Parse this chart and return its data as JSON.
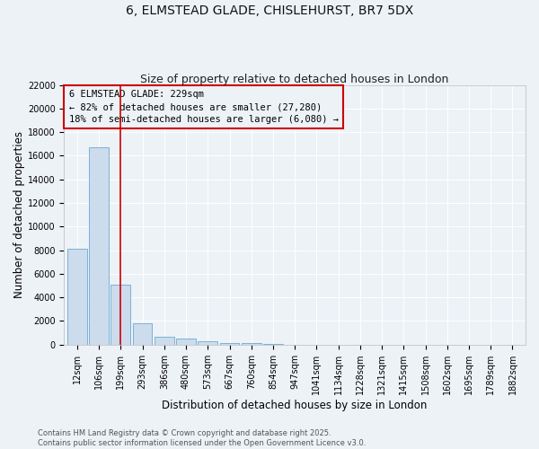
{
  "title_line1": "6, ELMSTEAD GLADE, CHISLEHURST, BR7 5DX",
  "title_line2": "Size of property relative to detached houses in London",
  "xlabel": "Distribution of detached houses by size in London",
  "ylabel": "Number of detached properties",
  "categories": [
    "12sqm",
    "106sqm",
    "199sqm",
    "293sqm",
    "386sqm",
    "480sqm",
    "573sqm",
    "667sqm",
    "760sqm",
    "854sqm",
    "947sqm",
    "1041sqm",
    "1134sqm",
    "1228sqm",
    "1321sqm",
    "1415sqm",
    "1508sqm",
    "1602sqm",
    "1695sqm",
    "1789sqm",
    "1882sqm"
  ],
  "values": [
    8100,
    16700,
    5100,
    1800,
    700,
    500,
    300,
    150,
    100,
    50,
    0,
    0,
    0,
    0,
    0,
    0,
    0,
    0,
    0,
    0,
    0
  ],
  "bar_color": "#ccdcec",
  "bar_edge_color": "#6aaad4",
  "red_line_index": 2,
  "annotation_text": "6 ELMSTEAD GLADE: 229sqm\n← 82% of detached houses are smaller (27,280)\n18% of semi-detached houses are larger (6,080) →",
  "ylim": [
    0,
    22000
  ],
  "yticks": [
    0,
    2000,
    4000,
    6000,
    8000,
    10000,
    12000,
    14000,
    16000,
    18000,
    20000,
    22000
  ],
  "red_line_color": "#cc0000",
  "annotation_box_color": "#cc0000",
  "footer_line1": "Contains HM Land Registry data © Crown copyright and database right 2025.",
  "footer_line2": "Contains public sector information licensed under the Open Government Licence v3.0.",
  "bg_color": "#edf2f7",
  "grid_color": "#ffffff",
  "title_fontsize": 10,
  "subtitle_fontsize": 9,
  "axis_label_fontsize": 8.5,
  "tick_fontsize": 7,
  "annotation_fontsize": 7.5,
  "footer_fontsize": 6
}
